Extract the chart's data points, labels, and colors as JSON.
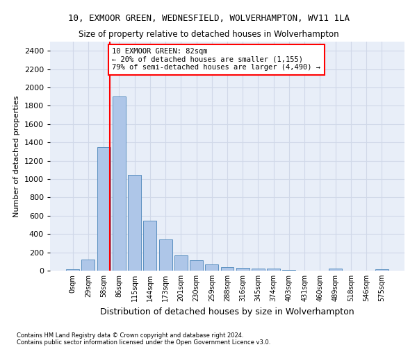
{
  "title": "10, EXMOOR GREEN, WEDNESFIELD, WOLVERHAMPTON, WV11 1LA",
  "subtitle": "Size of property relative to detached houses in Wolverhampton",
  "xlabel": "Distribution of detached houses by size in Wolverhampton",
  "ylabel": "Number of detached properties",
  "bin_labels": [
    "0sqm",
    "29sqm",
    "58sqm",
    "86sqm",
    "115sqm",
    "144sqm",
    "173sqm",
    "201sqm",
    "230sqm",
    "259sqm",
    "288sqm",
    "316sqm",
    "345sqm",
    "374sqm",
    "403sqm",
    "431sqm",
    "460sqm",
    "489sqm",
    "518sqm",
    "546sqm",
    "575sqm"
  ],
  "bar_values": [
    15,
    125,
    1350,
    1900,
    1045,
    545,
    340,
    170,
    110,
    65,
    40,
    30,
    25,
    20,
    10,
    0,
    0,
    20,
    0,
    0,
    15
  ],
  "bar_color": "#aec6e8",
  "bar_edge_color": "#5a8fc0",
  "vline_color": "red",
  "annotation_text": "10 EXMOOR GREEN: 82sqm\n← 20% of detached houses are smaller (1,155)\n79% of semi-detached houses are larger (4,490) →",
  "annotation_box_color": "white",
  "annotation_box_edge_color": "red",
  "ylim": [
    0,
    2500
  ],
  "yticks": [
    0,
    200,
    400,
    600,
    800,
    1000,
    1200,
    1400,
    1600,
    1800,
    2000,
    2200,
    2400
  ],
  "grid_color": "#d0d8e8",
  "background_color": "#e8eef8",
  "footer_line1": "Contains HM Land Registry data © Crown copyright and database right 2024.",
  "footer_line2": "Contains public sector information licensed under the Open Government Licence v3.0."
}
